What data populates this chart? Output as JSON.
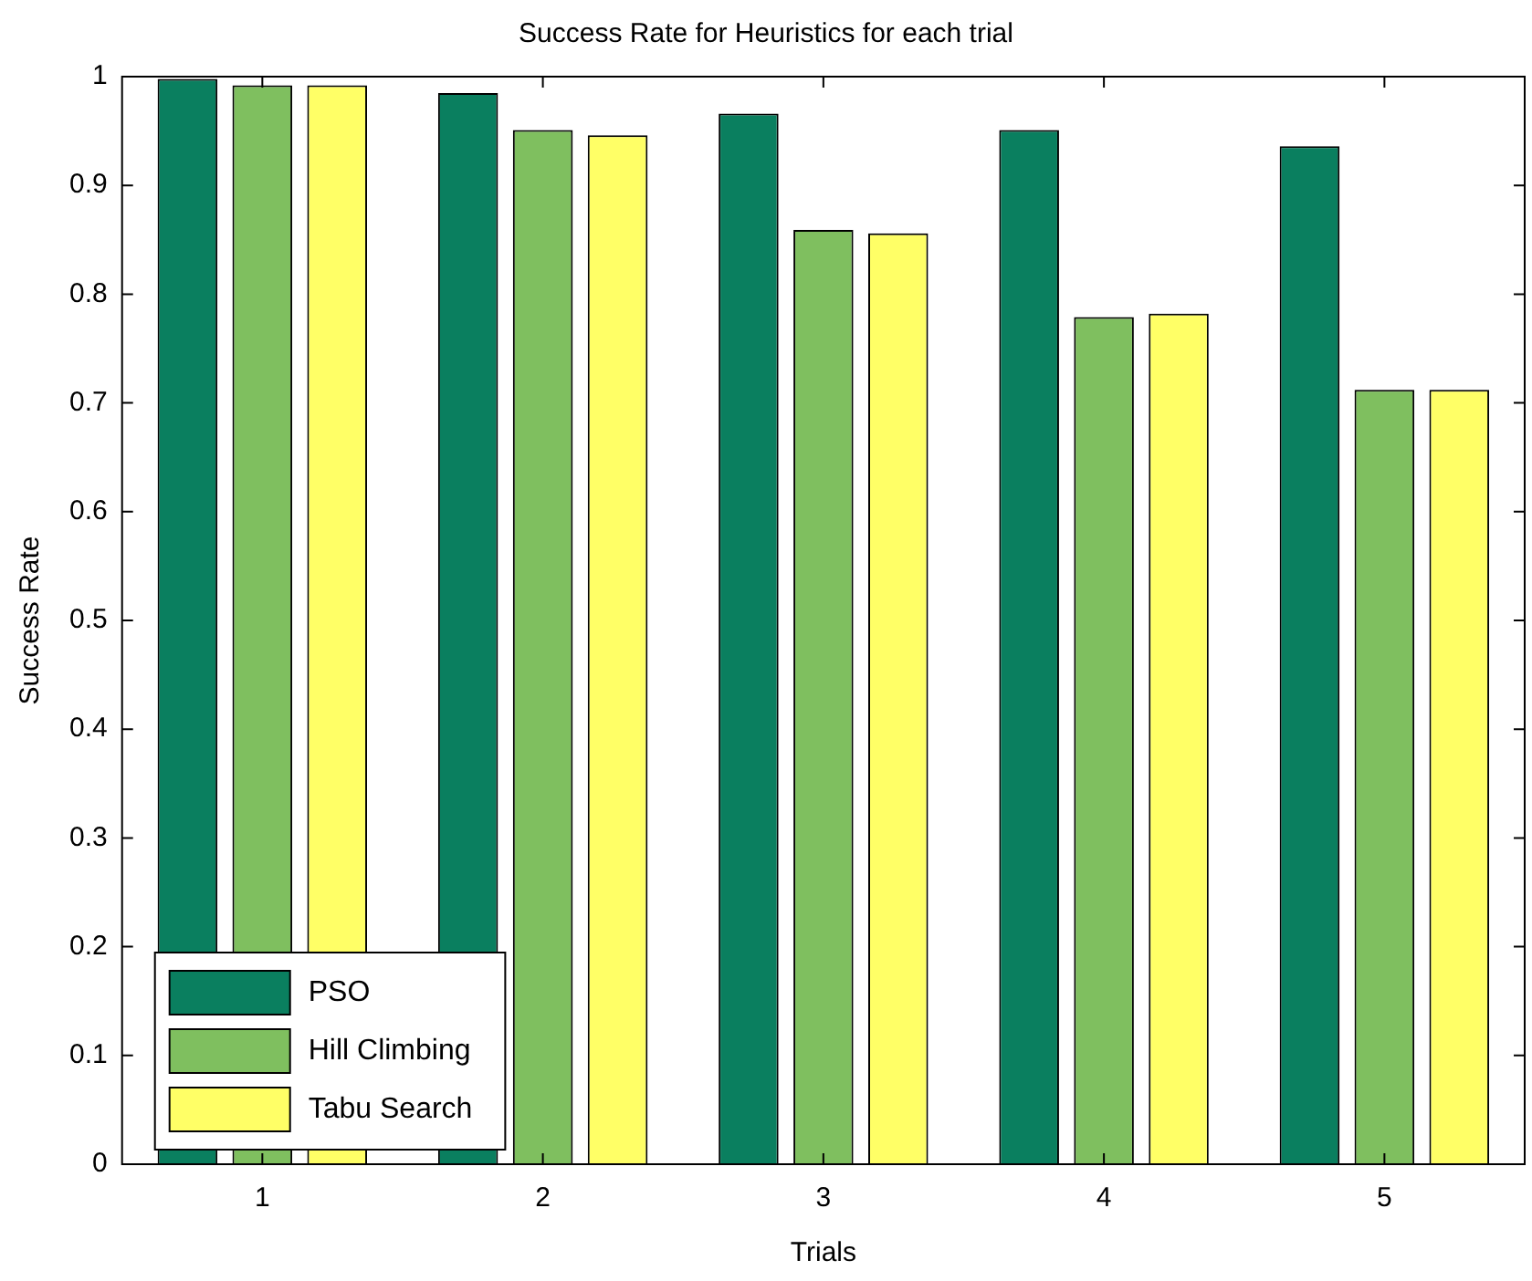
{
  "chart_data": {
    "type": "bar",
    "title": "Success Rate for Heuristics for each trial",
    "xlabel": "Trials",
    "ylabel": "Success Rate",
    "categories": [
      "1",
      "2",
      "3",
      "4",
      "5"
    ],
    "series": [
      {
        "name": "PSO",
        "color": "#0a7f5f",
        "values": [
          0.998,
          0.985,
          0.966,
          0.951,
          0.936
        ]
      },
      {
        "name": "Hill Climbing",
        "color": "#7fbf5f",
        "values": [
          0.992,
          0.951,
          0.859,
          0.779,
          0.712
        ]
      },
      {
        "name": "Tabu Search",
        "color": "#ffff66",
        "values": [
          0.992,
          0.946,
          0.856,
          0.782,
          0.712
        ]
      }
    ],
    "ylim": [
      0,
      1
    ],
    "yticks": [
      0,
      0.1,
      0.2,
      0.3,
      0.4,
      0.5,
      0.6,
      0.7,
      0.8,
      0.9,
      1
    ],
    "legend": "bottom left",
    "grid": false
  }
}
